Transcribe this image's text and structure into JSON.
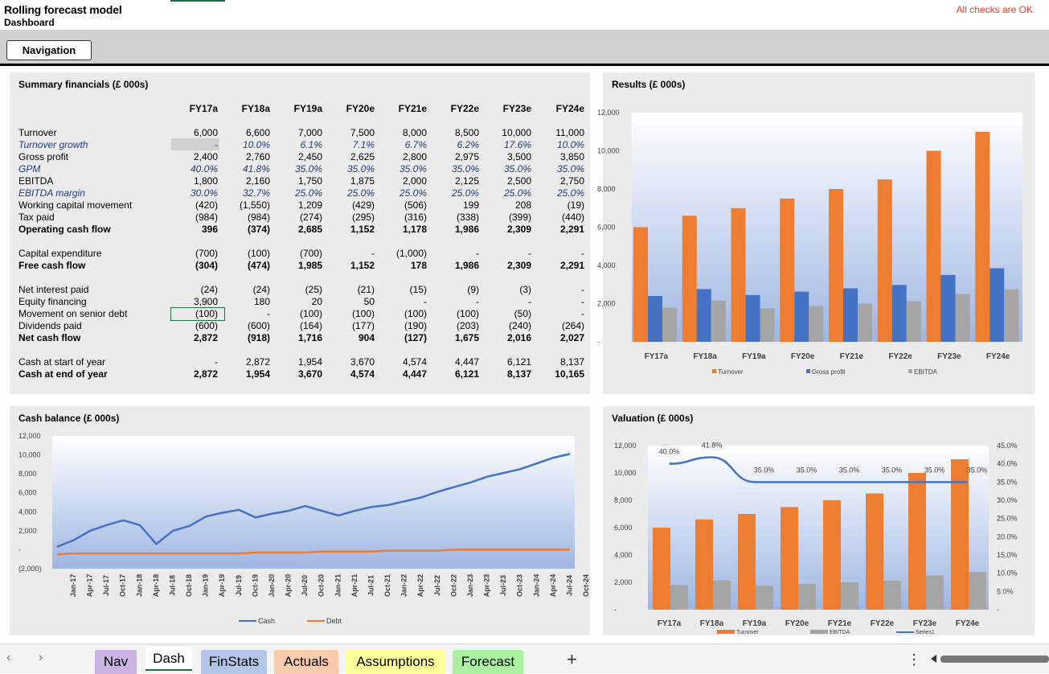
{
  "header": {
    "title": "Rolling forecast model",
    "subtitle": "Dashboard",
    "checks_status": "All checks are OK",
    "nav_button": "Navigation"
  },
  "summary": {
    "title": "Summary financials (£ 000s)",
    "columns": [
      "FY17a",
      "FY18a",
      "FY19a",
      "FY20e",
      "FY21e",
      "FY22e",
      "FY23e",
      "FY24e"
    ],
    "rows": [
      {
        "label": "Turnover",
        "style": "normal",
        "values": [
          "6,000",
          "6,600",
          "7,000",
          "7,500",
          "8,000",
          "8,500",
          "10,000",
          "11,000"
        ]
      },
      {
        "label": "Turnover growth",
        "style": "italic",
        "values": [
          "-",
          "10.0%",
          "6.1%",
          "7.1%",
          "6.7%",
          "6.2%",
          "17.6%",
          "10.0%"
        ]
      },
      {
        "label": "Gross profit",
        "style": "normal",
        "values": [
          "2,400",
          "2,760",
          "2,450",
          "2,625",
          "2,800",
          "2,975",
          "3,500",
          "3,850"
        ]
      },
      {
        "label": "GPM",
        "style": "italic",
        "values": [
          "40.0%",
          "41.8%",
          "35.0%",
          "35.0%",
          "35.0%",
          "35.0%",
          "35.0%",
          "35.0%"
        ]
      },
      {
        "label": "EBITDA",
        "style": "normal",
        "values": [
          "1,800",
          "2,160",
          "1,750",
          "1,875",
          "2,000",
          "2,125",
          "2,500",
          "2,750"
        ]
      },
      {
        "label": "EBITDA margin",
        "style": "italic",
        "values": [
          "30.0%",
          "32.7%",
          "25.0%",
          "25.0%",
          "25.0%",
          "25.0%",
          "25.0%",
          "25.0%"
        ]
      },
      {
        "label": "Working capital movement",
        "style": "normal",
        "values": [
          "(420)",
          "(1,550)",
          "1,209",
          "(429)",
          "(506)",
          "199",
          "208",
          "(19)"
        ]
      },
      {
        "label": "Tax paid",
        "style": "normal",
        "values": [
          "(984)",
          "(984)",
          "(274)",
          "(295)",
          "(316)",
          "(338)",
          "(399)",
          "(440)"
        ]
      },
      {
        "label": "Operating cash flow",
        "style": "bold",
        "values": [
          "396",
          "(374)",
          "2,685",
          "1,152",
          "1,178",
          "1,986",
          "2,309",
          "2,291"
        ]
      },
      {
        "label": "Capital expenditure",
        "style": "normal",
        "values": [
          "(700)",
          "(100)",
          "(700)",
          "-",
          "(1,000)",
          "-",
          "-",
          "-"
        ]
      },
      {
        "label": "Free cash flow",
        "style": "bold",
        "values": [
          "(304)",
          "(474)",
          "1,985",
          "1,152",
          "178",
          "1,986",
          "2,309",
          "2,291"
        ]
      },
      {
        "label": "Net interest paid",
        "style": "normal",
        "values": [
          "(24)",
          "(24)",
          "(25)",
          "(21)",
          "(15)",
          "(9)",
          "(3)",
          "-"
        ]
      },
      {
        "label": "Equity financing",
        "style": "normal",
        "values": [
          "3,900",
          "180",
          "20",
          "50",
          "-",
          "-",
          "-",
          "-"
        ]
      },
      {
        "label": "Movement on senior debt",
        "style": "normal",
        "values": [
          "(100)",
          "-",
          "(100)",
          "(100)",
          "(100)",
          "(100)",
          "(50)",
          "-"
        ]
      },
      {
        "label": "Dividends paid",
        "style": "normal",
        "values": [
          "(600)",
          "(600)",
          "(164)",
          "(177)",
          "(190)",
          "(203)",
          "(240)",
          "(264)"
        ]
      },
      {
        "label": "Net cash flow",
        "style": "bold",
        "values": [
          "2,872",
          "(918)",
          "1,716",
          "904",
          "(127)",
          "1,675",
          "2,016",
          "2,027"
        ]
      },
      {
        "label": "Cash at start of year",
        "style": "normal",
        "values": [
          "-",
          "2,872",
          "1,954",
          "3,670",
          "4,574",
          "4,447",
          "6,121",
          "8,137"
        ]
      },
      {
        "label": "Cash at end of year",
        "style": "bold",
        "values": [
          "2,872",
          "1,954",
          "3,670",
          "4,574",
          "4,447",
          "6,121",
          "8,137",
          "10,165"
        ]
      }
    ]
  },
  "chart_data": [
    {
      "type": "bar",
      "title": "Results (£ 000s)",
      "categories": [
        "FY17a",
        "FY18a",
        "FY19a",
        "FY20e",
        "FY21e",
        "FY22e",
        "FY23e",
        "FY24e"
      ],
      "series": [
        {
          "name": "Turnover",
          "color": "#ed7d31",
          "values": [
            6000,
            6600,
            7000,
            7500,
            8000,
            8500,
            10000,
            11000
          ]
        },
        {
          "name": "Gross profit",
          "color": "#4472c4",
          "values": [
            2400,
            2760,
            2450,
            2625,
            2800,
            2975,
            3500,
            3850
          ]
        },
        {
          "name": "EBITDA",
          "color": "#a5a5a5",
          "values": [
            1800,
            2160,
            1750,
            1875,
            2000,
            2125,
            2500,
            2750
          ]
        }
      ],
      "ylim": [
        0,
        12000
      ],
      "yticks": [
        "-",
        "2,000",
        "4,000",
        "6,000",
        "8,000",
        "10,000",
        "12,000"
      ],
      "legend": "bottom"
    },
    {
      "type": "line",
      "title": "Cash balance (£ 000s)",
      "x": [
        "Jan-17",
        "Apr-17",
        "Jul-17",
        "Oct-17",
        "Jan-18",
        "Apr-18",
        "Jul-18",
        "Oct-18",
        "Jan-19",
        "Apr-19",
        "Jul-19",
        "Oct-19",
        "Jan-20",
        "Apr-20",
        "Jul-20",
        "Oct-20",
        "Jan-21",
        "Apr-21",
        "Jul-21",
        "Oct-21",
        "Jan-22",
        "Apr-22",
        "Jul-22",
        "Oct-22",
        "Jan-23",
        "Apr-23",
        "Jul-23",
        "Oct-23",
        "Jan-24",
        "Apr-24",
        "Jul-24",
        "Oct-24"
      ],
      "series": [
        {
          "name": "Cash",
          "color": "#4472c4",
          "values": [
            300,
            1000,
            2000,
            2600,
            3100,
            2600,
            600,
            2000,
            2500,
            3500,
            3900,
            4200,
            3400,
            3800,
            4100,
            4600,
            4100,
            3600,
            4100,
            4500,
            4700,
            5100,
            5500,
            6100,
            6600,
            7100,
            7700,
            8100,
            8500,
            9100,
            9700,
            10100
          ]
        },
        {
          "name": "Debt",
          "color": "#ed7d31",
          "values": [
            -500,
            -400,
            -400,
            -400,
            -400,
            -400,
            -400,
            -400,
            -400,
            -400,
            -400,
            -400,
            -300,
            -300,
            -300,
            -300,
            -200,
            -200,
            -200,
            -200,
            -100,
            -100,
            -100,
            -100,
            0,
            0,
            0,
            0,
            0,
            0,
            0,
            0
          ]
        }
      ],
      "ylim": [
        -2000,
        12000
      ],
      "yticks": [
        "(2,000)",
        "-",
        "2,000",
        "4,000",
        "6,000",
        "8,000",
        "10,000",
        "12,000"
      ],
      "legend": "bottom"
    },
    {
      "type": "bar",
      "title": "Valuation (£ 000s)",
      "categories": [
        "FY17a",
        "FY18a",
        "FY19a",
        "FY20e",
        "FY21e",
        "FY22e",
        "FY23e",
        "FY24e"
      ],
      "series": [
        {
          "name": "Turnover",
          "color": "#ed7d31",
          "values": [
            6000,
            6600,
            7000,
            7500,
            8000,
            8500,
            10000,
            11000
          ]
        },
        {
          "name": "EBITDA",
          "color": "#a5a5a5",
          "values": [
            1800,
            2160,
            1750,
            1875,
            2000,
            2125,
            2500,
            2750
          ]
        },
        {
          "name": "Series1",
          "color": "#4472c4",
          "type": "line",
          "axis": "secondary",
          "values": [
            40.0,
            41.8,
            35.0,
            35.0,
            35.0,
            35.0,
            35.0,
            35.0
          ],
          "labels": [
            "40.0%",
            "41.8%",
            "35.0%",
            "35.0%",
            "35.0%",
            "35.0%",
            "35.0%",
            "35.0%"
          ]
        }
      ],
      "ylim": [
        0,
        12000
      ],
      "yticks": [
        "-",
        "2,000",
        "4,000",
        "6,000",
        "8,000",
        "10,000",
        "12,000"
      ],
      "y2lim": [
        0,
        45
      ],
      "y2ticks": [
        "-",
        "5.0%",
        "10.0%",
        "15.0%",
        "20.0%",
        "25.0%",
        "30.0%",
        "35.0%",
        "40.0%",
        "45.0%"
      ],
      "legend": "bottom"
    }
  ],
  "sheet_tabs": [
    {
      "label": "Nav",
      "color": "#c9b3e3"
    },
    {
      "label": "Dash",
      "color": "#ffffff",
      "active": true
    },
    {
      "label": "FinStats",
      "color": "#b4c6e7"
    },
    {
      "label": "Actuals",
      "color": "#f8cbad"
    },
    {
      "label": "Assumptions",
      "color": "#ffff99"
    },
    {
      "label": "Forecast",
      "color": "#a9f0a0"
    }
  ]
}
